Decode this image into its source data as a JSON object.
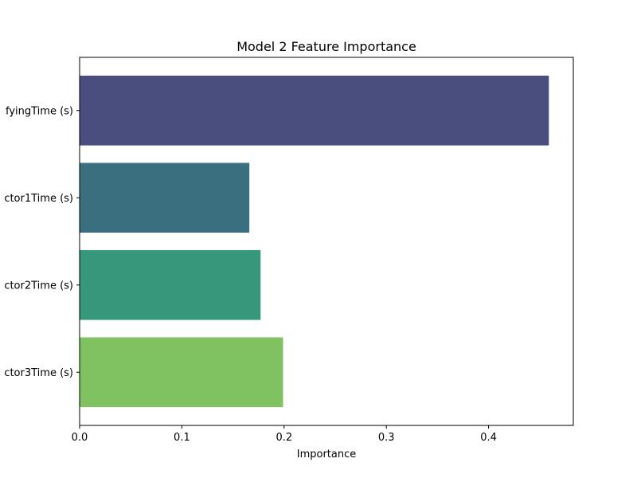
{
  "chart_data": {
    "type": "bar",
    "orientation": "horizontal",
    "title": "Model 2 Feature Importance",
    "xlabel": "Importance",
    "ylabel": "",
    "categories": [
      "fyingTime (s)",
      "ctor1Time (s)",
      "ctor2Time (s)",
      "ctor3Time (s)"
    ],
    "values": [
      0.459,
      0.166,
      0.177,
      0.199
    ],
    "colors": [
      "#4a4e7e",
      "#3a6f80",
      "#36977b",
      "#80c261"
    ],
    "xlim": [
      0,
      0.4829
    ],
    "xticks": [
      0,
      0.1,
      0.2,
      0.3,
      0.4
    ],
    "xtick_labels": [
      "0.0",
      "0.1",
      "0.2",
      "0.3",
      "0.4"
    ],
    "grid": false,
    "legend": "none"
  }
}
